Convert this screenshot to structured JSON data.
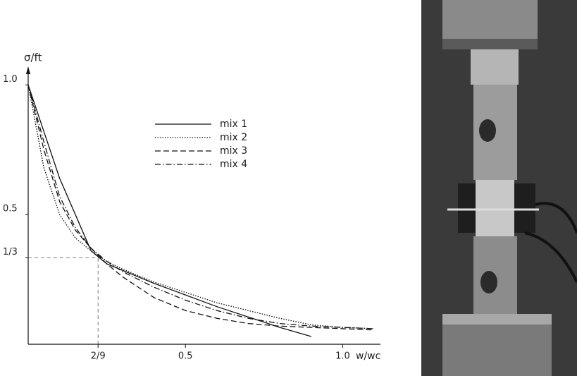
{
  "chart_data": {
    "type": "line",
    "xlabel": "w/wc",
    "ylabel": "σ/ft",
    "x": [
      0,
      0.05,
      0.1,
      0.15,
      0.2,
      0.25,
      0.3,
      0.4,
      0.5,
      0.6,
      0.7,
      0.8,
      0.9,
      1.0,
      1.1
    ],
    "series": [
      {
        "name": "mix 1",
        "color": "#111",
        "dash": "solid",
        "values": [
          1.0,
          0.82,
          0.64,
          0.5,
          0.36,
          0.31,
          0.285,
          0.235,
          0.19,
          0.145,
          0.105,
          0.065,
          0.03,
          null,
          null
        ]
      },
      {
        "name": "mix 2",
        "color": "#111",
        "dash": "dotted",
        "values": [
          1.0,
          0.68,
          0.5,
          0.41,
          0.36,
          0.32,
          0.29,
          0.24,
          0.2,
          0.16,
          0.13,
          0.1,
          0.075,
          0.065,
          0.06
        ]
      },
      {
        "name": "mix 3",
        "color": "#111",
        "dash": "dashed",
        "values": [
          1.0,
          0.75,
          0.55,
          0.44,
          0.37,
          0.31,
          0.26,
          0.18,
          0.13,
          0.1,
          0.08,
          0.07,
          0.065,
          0.06,
          0.055
        ]
      },
      {
        "name": "mix 4",
        "color": "#111",
        "dash": "dashdot",
        "values": [
          1.0,
          0.78,
          0.57,
          0.45,
          0.37,
          0.32,
          0.28,
          0.22,
          0.17,
          0.13,
          0.1,
          0.08,
          0.07,
          0.065,
          0.06
        ]
      }
    ],
    "xlim": [
      0,
      1.12
    ],
    "ylim": [
      0,
      1.05
    ],
    "xticks": [
      {
        "value": 0.2222,
        "label": "2/9",
        "guide": true
      },
      0.5,
      {
        "value": 1,
        "label": "1.0"
      }
    ],
    "yticks": [
      {
        "value": 0.3333,
        "label": "1/3",
        "guide": true
      },
      0.5,
      {
        "value": 1,
        "label": "1.0"
      }
    ],
    "grid": false
  }
}
